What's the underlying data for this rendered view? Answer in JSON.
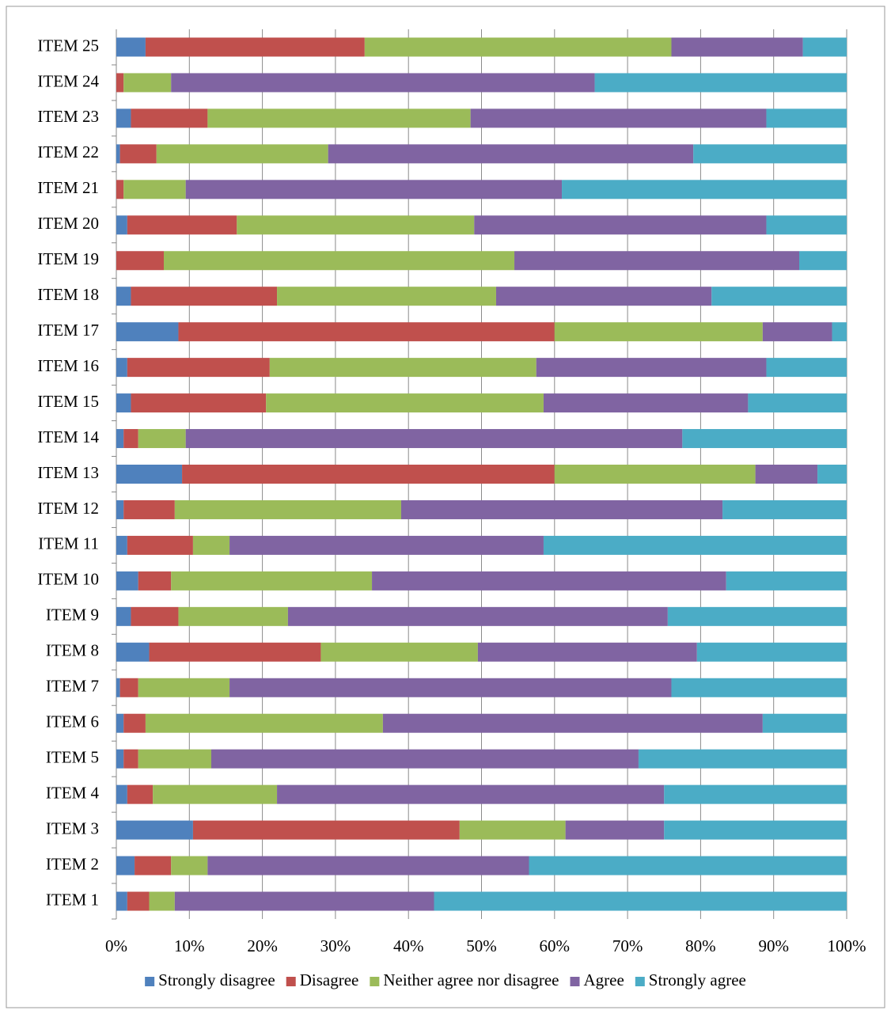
{
  "chart_data": {
    "type": "stacked-bar-horizontal",
    "categories": [
      "ITEM 1",
      "ITEM 2",
      "ITEM 3",
      "ITEM 4",
      "ITEM 5",
      "ITEM 6",
      "ITEM 7",
      "ITEM 8",
      "ITEM 9",
      "ITEM 10",
      "ITEM 11",
      "ITEM 12",
      "ITEM 13",
      "ITEM 14",
      "ITEM 15",
      "ITEM 16",
      "ITEM 17",
      "ITEM 18",
      "ITEM 19",
      "ITEM 20",
      "ITEM 21",
      "ITEM 22",
      "ITEM 23",
      "ITEM 24",
      "ITEM 25"
    ],
    "series": [
      {
        "name": "Strongly disagree",
        "color": "#4f81bd",
        "values": [
          1.5,
          2.5,
          10.5,
          1.5,
          1,
          1,
          0.5,
          4.5,
          2,
          3,
          1.5,
          1,
          9,
          1,
          2,
          1.5,
          8.5,
          2,
          0,
          1.5,
          0,
          0.5,
          2,
          0,
          4
        ]
      },
      {
        "name": "Disagree",
        "color": "#c0504d",
        "values": [
          3,
          5,
          36.5,
          3.5,
          2,
          3,
          2.5,
          23.5,
          6.5,
          4.5,
          9,
          7,
          51,
          2,
          18.5,
          19.5,
          51.5,
          20,
          6.5,
          15,
          1,
          5,
          10.5,
          1,
          30
        ]
      },
      {
        "name": "Neither agree nor disagree",
        "color": "#9bbb59",
        "values": [
          3.5,
          5,
          14.5,
          17,
          10,
          32.5,
          12.5,
          21.5,
          15,
          27.5,
          5,
          31,
          27.5,
          6.5,
          38,
          36.5,
          28.5,
          30,
          48,
          32.5,
          8.5,
          23.5,
          36,
          6.5,
          42
        ]
      },
      {
        "name": "Agree",
        "color": "#8064a2",
        "values": [
          35.5,
          44,
          13.5,
          53,
          58.5,
          52,
          60.5,
          30,
          52,
          48.5,
          43,
          44,
          8.5,
          68,
          28,
          31.5,
          9.5,
          29.5,
          39,
          40,
          51.5,
          50,
          40.5,
          58,
          18
        ]
      },
      {
        "name": "Strongly agree",
        "color": "#4bacc6",
        "values": [
          56.5,
          43.5,
          25,
          25,
          28.5,
          11.5,
          24,
          20.5,
          24.5,
          16.5,
          41.5,
          17,
          4,
          22.5,
          13.5,
          11,
          2,
          18.5,
          6.5,
          11,
          39,
          21,
          11,
          34.5,
          6
        ]
      }
    ],
    "xlim": [
      0,
      100
    ],
    "xticks": [
      {
        "value": 0,
        "label": "0%"
      },
      {
        "value": 10,
        "label": "10%"
      },
      {
        "value": 20,
        "label": "20%"
      },
      {
        "value": 30,
        "label": "30%"
      },
      {
        "value": 40,
        "label": "40%"
      },
      {
        "value": 50,
        "label": "50%"
      },
      {
        "value": 60,
        "label": "60%"
      },
      {
        "value": 70,
        "label": "70%"
      },
      {
        "value": 80,
        "label": "80%"
      },
      {
        "value": 90,
        "label": "90%"
      },
      {
        "value": 100,
        "label": "100%"
      }
    ],
    "grid": true,
    "legend": "bottom"
  }
}
